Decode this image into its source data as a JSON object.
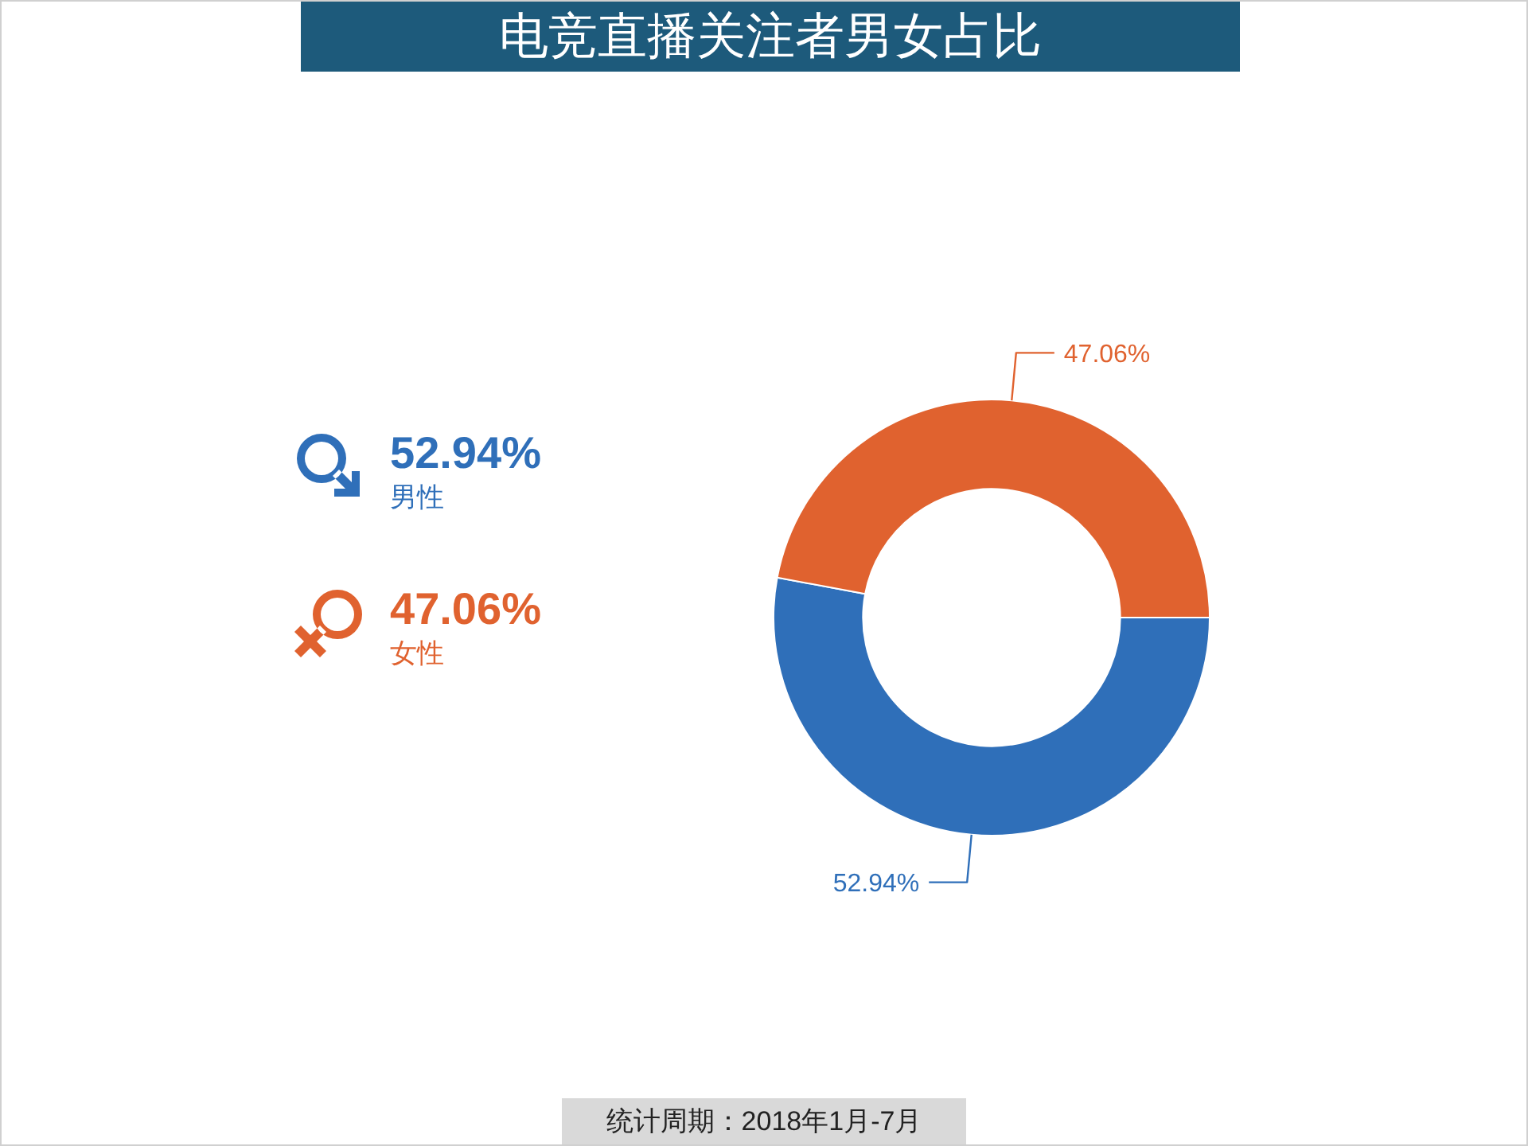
{
  "chart_data": {
    "type": "donut",
    "title": "电竞直播关注者男女占比",
    "categories": [
      "男性",
      "女性"
    ],
    "values": [
      52.94,
      47.06
    ],
    "colors": [
      "#2f6fb9",
      "#e0622f"
    ],
    "value_labels": [
      "52.94%",
      "47.06%"
    ],
    "legend": "left",
    "annotations": [
      "统计周期：2018年1月-7月"
    ]
  }
}
